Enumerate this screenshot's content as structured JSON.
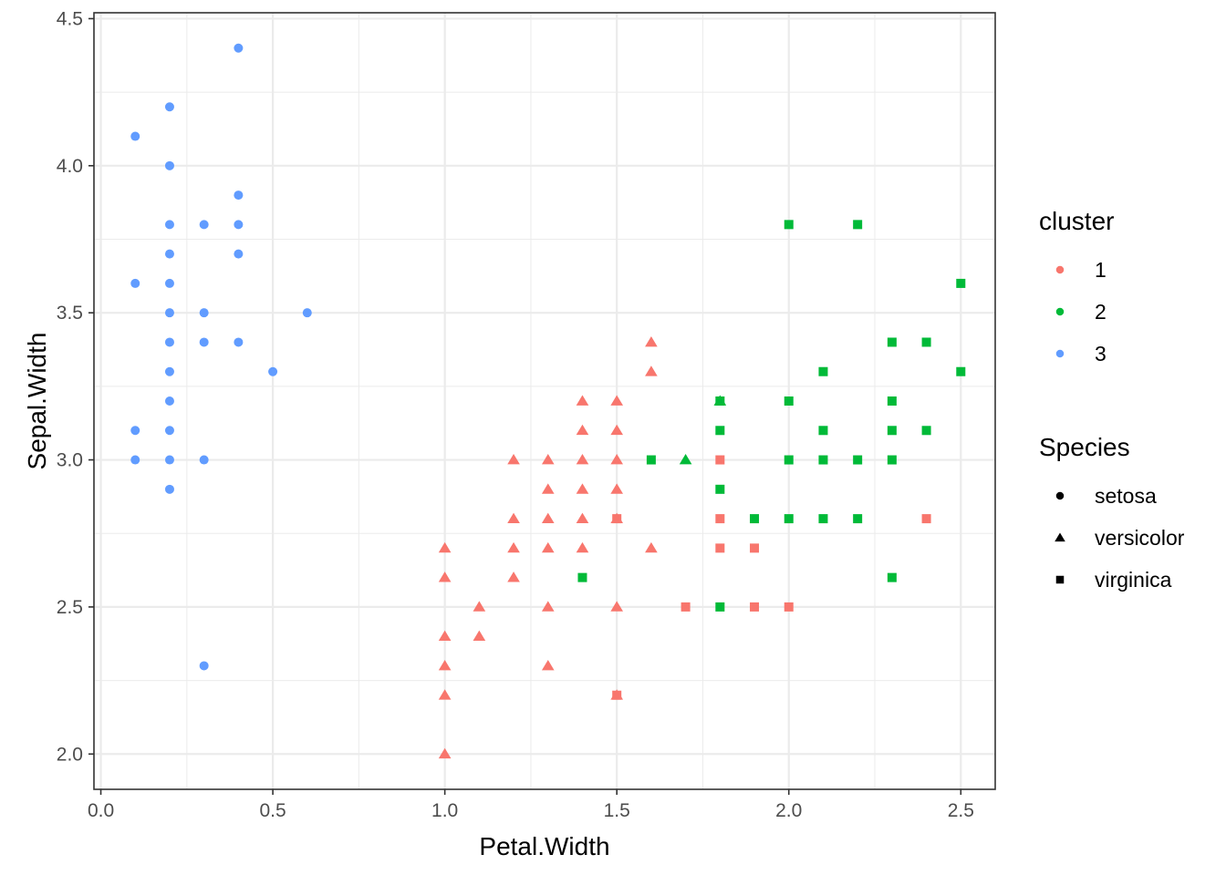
{
  "chart_data": {
    "type": "scatter",
    "xlabel": "Petal.Width",
    "ylabel": "Sepal.Width",
    "xlim": [
      -0.02,
      2.6
    ],
    "ylim": [
      1.88,
      4.52
    ],
    "x_ticks": [
      0.0,
      0.5,
      1.0,
      1.5,
      2.0,
      2.5
    ],
    "x_tick_labels": [
      "0.0",
      "0.5",
      "1.0",
      "1.5",
      "2.0",
      "2.5"
    ],
    "y_ticks": [
      2.0,
      2.5,
      3.0,
      3.5,
      4.0,
      4.5
    ],
    "y_tick_labels": [
      "2.0",
      "2.5",
      "3.0",
      "3.5",
      "4.0",
      "4.5"
    ],
    "grid": true,
    "legend_position": "right",
    "cluster_colors": {
      "1": "#F8766D",
      "2": "#00BA38",
      "3": "#619CFF"
    },
    "legends": {
      "cluster": {
        "title": "cluster",
        "entries": [
          "1",
          "2",
          "3"
        ]
      },
      "species": {
        "title": "Species",
        "entries": [
          "setosa",
          "versicolor",
          "virginica"
        ],
        "shapes": [
          "circle",
          "triangle",
          "square"
        ]
      }
    },
    "points": [
      {
        "x": 0.4,
        "y": 4.4,
        "cluster": "3",
        "species": "setosa"
      },
      {
        "x": 0.2,
        "y": 4.2,
        "cluster": "3",
        "species": "setosa"
      },
      {
        "x": 0.1,
        "y": 4.1,
        "cluster": "3",
        "species": "setosa"
      },
      {
        "x": 0.2,
        "y": 4.0,
        "cluster": "3",
        "species": "setosa"
      },
      {
        "x": 0.4,
        "y": 3.9,
        "cluster": "3",
        "species": "setosa"
      },
      {
        "x": 0.2,
        "y": 3.8,
        "cluster": "3",
        "species": "setosa"
      },
      {
        "x": 0.3,
        "y": 3.8,
        "cluster": "3",
        "species": "setosa"
      },
      {
        "x": 0.4,
        "y": 3.8,
        "cluster": "3",
        "species": "setosa"
      },
      {
        "x": 0.2,
        "y": 3.7,
        "cluster": "3",
        "species": "setosa"
      },
      {
        "x": 0.4,
        "y": 3.7,
        "cluster": "3",
        "species": "setosa"
      },
      {
        "x": 0.1,
        "y": 3.6,
        "cluster": "3",
        "species": "setosa"
      },
      {
        "x": 0.2,
        "y": 3.6,
        "cluster": "3",
        "species": "setosa"
      },
      {
        "x": 0.2,
        "y": 3.5,
        "cluster": "3",
        "species": "setosa"
      },
      {
        "x": 0.3,
        "y": 3.5,
        "cluster": "3",
        "species": "setosa"
      },
      {
        "x": 0.6,
        "y": 3.5,
        "cluster": "3",
        "species": "setosa"
      },
      {
        "x": 0.2,
        "y": 3.4,
        "cluster": "3",
        "species": "setosa"
      },
      {
        "x": 0.3,
        "y": 3.4,
        "cluster": "3",
        "species": "setosa"
      },
      {
        "x": 0.4,
        "y": 3.4,
        "cluster": "3",
        "species": "setosa"
      },
      {
        "x": 0.2,
        "y": 3.3,
        "cluster": "3",
        "species": "setosa"
      },
      {
        "x": 0.5,
        "y": 3.3,
        "cluster": "3",
        "species": "setosa"
      },
      {
        "x": 0.2,
        "y": 3.2,
        "cluster": "3",
        "species": "setosa"
      },
      {
        "x": 0.1,
        "y": 3.1,
        "cluster": "3",
        "species": "setosa"
      },
      {
        "x": 0.2,
        "y": 3.1,
        "cluster": "3",
        "species": "setosa"
      },
      {
        "x": 0.1,
        "y": 3.0,
        "cluster": "3",
        "species": "setosa"
      },
      {
        "x": 0.2,
        "y": 3.0,
        "cluster": "3",
        "species": "setosa"
      },
      {
        "x": 0.3,
        "y": 3.0,
        "cluster": "3",
        "species": "setosa"
      },
      {
        "x": 0.2,
        "y": 2.9,
        "cluster": "3",
        "species": "setosa"
      },
      {
        "x": 0.3,
        "y": 2.3,
        "cluster": "3",
        "species": "setosa"
      },
      {
        "x": 1.6,
        "y": 3.4,
        "cluster": "1",
        "species": "versicolor"
      },
      {
        "x": 1.6,
        "y": 3.3,
        "cluster": "1",
        "species": "versicolor"
      },
      {
        "x": 1.4,
        "y": 3.2,
        "cluster": "1",
        "species": "versicolor"
      },
      {
        "x": 1.5,
        "y": 3.2,
        "cluster": "1",
        "species": "versicolor"
      },
      {
        "x": 1.4,
        "y": 3.1,
        "cluster": "1",
        "species": "versicolor"
      },
      {
        "x": 1.5,
        "y": 3.1,
        "cluster": "1",
        "species": "versicolor"
      },
      {
        "x": 1.2,
        "y": 3.0,
        "cluster": "1",
        "species": "versicolor"
      },
      {
        "x": 1.3,
        "y": 3.0,
        "cluster": "1",
        "species": "versicolor"
      },
      {
        "x": 1.4,
        "y": 3.0,
        "cluster": "1",
        "species": "versicolor"
      },
      {
        "x": 1.5,
        "y": 3.0,
        "cluster": "1",
        "species": "versicolor"
      },
      {
        "x": 1.3,
        "y": 2.9,
        "cluster": "1",
        "species": "versicolor"
      },
      {
        "x": 1.4,
        "y": 2.9,
        "cluster": "1",
        "species": "versicolor"
      },
      {
        "x": 1.5,
        "y": 2.9,
        "cluster": "1",
        "species": "versicolor"
      },
      {
        "x": 1.2,
        "y": 2.8,
        "cluster": "1",
        "species": "versicolor"
      },
      {
        "x": 1.3,
        "y": 2.8,
        "cluster": "1",
        "species": "versicolor"
      },
      {
        "x": 1.4,
        "y": 2.8,
        "cluster": "1",
        "species": "versicolor"
      },
      {
        "x": 1.5,
        "y": 2.8,
        "cluster": "1",
        "species": "versicolor"
      },
      {
        "x": 1.0,
        "y": 2.7,
        "cluster": "1",
        "species": "versicolor"
      },
      {
        "x": 1.2,
        "y": 2.7,
        "cluster": "1",
        "species": "versicolor"
      },
      {
        "x": 1.3,
        "y": 2.7,
        "cluster": "1",
        "species": "versicolor"
      },
      {
        "x": 1.4,
        "y": 2.7,
        "cluster": "1",
        "species": "versicolor"
      },
      {
        "x": 1.6,
        "y": 2.7,
        "cluster": "1",
        "species": "versicolor"
      },
      {
        "x": 1.0,
        "y": 2.6,
        "cluster": "1",
        "species": "versicolor"
      },
      {
        "x": 1.2,
        "y": 2.6,
        "cluster": "1",
        "species": "versicolor"
      },
      {
        "x": 1.1,
        "y": 2.5,
        "cluster": "1",
        "species": "versicolor"
      },
      {
        "x": 1.3,
        "y": 2.5,
        "cluster": "1",
        "species": "versicolor"
      },
      {
        "x": 1.5,
        "y": 2.5,
        "cluster": "1",
        "species": "versicolor"
      },
      {
        "x": 1.0,
        "y": 2.4,
        "cluster": "1",
        "species": "versicolor"
      },
      {
        "x": 1.1,
        "y": 2.4,
        "cluster": "1",
        "species": "versicolor"
      },
      {
        "x": 1.0,
        "y": 2.3,
        "cluster": "1",
        "species": "versicolor"
      },
      {
        "x": 1.3,
        "y": 2.3,
        "cluster": "1",
        "species": "versicolor"
      },
      {
        "x": 1.0,
        "y": 2.2,
        "cluster": "1",
        "species": "versicolor"
      },
      {
        "x": 1.5,
        "y": 2.2,
        "cluster": "1",
        "species": "versicolor"
      },
      {
        "x": 1.0,
        "y": 2.0,
        "cluster": "1",
        "species": "versicolor"
      },
      {
        "x": 1.8,
        "y": 3.2,
        "cluster": "2",
        "species": "versicolor"
      },
      {
        "x": 1.7,
        "y": 3.0,
        "cluster": "2",
        "species": "versicolor"
      },
      {
        "x": 1.8,
        "y": 3.0,
        "cluster": "1",
        "species": "virginica"
      },
      {
        "x": 1.5,
        "y": 2.8,
        "cluster": "1",
        "species": "virginica"
      },
      {
        "x": 1.8,
        "y": 2.8,
        "cluster": "1",
        "species": "virginica"
      },
      {
        "x": 2.4,
        "y": 2.8,
        "cluster": "1",
        "species": "virginica"
      },
      {
        "x": 1.8,
        "y": 2.7,
        "cluster": "1",
        "species": "virginica"
      },
      {
        "x": 1.9,
        "y": 2.7,
        "cluster": "1",
        "species": "virginica"
      },
      {
        "x": 1.7,
        "y": 2.5,
        "cluster": "1",
        "species": "virginica"
      },
      {
        "x": 1.9,
        "y": 2.5,
        "cluster": "1",
        "species": "virginica"
      },
      {
        "x": 2.0,
        "y": 2.5,
        "cluster": "1",
        "species": "virginica"
      },
      {
        "x": 1.5,
        "y": 2.2,
        "cluster": "1",
        "species": "virginica"
      },
      {
        "x": 2.0,
        "y": 3.8,
        "cluster": "2",
        "species": "virginica"
      },
      {
        "x": 2.2,
        "y": 3.8,
        "cluster": "2",
        "species": "virginica"
      },
      {
        "x": 2.5,
        "y": 3.6,
        "cluster": "2",
        "species": "virginica"
      },
      {
        "x": 2.3,
        "y": 3.4,
        "cluster": "2",
        "species": "virginica"
      },
      {
        "x": 2.4,
        "y": 3.4,
        "cluster": "2",
        "species": "virginica"
      },
      {
        "x": 2.1,
        "y": 3.3,
        "cluster": "2",
        "species": "virginica"
      },
      {
        "x": 2.5,
        "y": 3.3,
        "cluster": "2",
        "species": "virginica"
      },
      {
        "x": 1.8,
        "y": 3.2,
        "cluster": "2",
        "species": "virginica"
      },
      {
        "x": 2.0,
        "y": 3.2,
        "cluster": "2",
        "species": "virginica"
      },
      {
        "x": 2.3,
        "y": 3.2,
        "cluster": "2",
        "species": "virginica"
      },
      {
        "x": 1.8,
        "y": 3.1,
        "cluster": "2",
        "species": "virginica"
      },
      {
        "x": 2.1,
        "y": 3.1,
        "cluster": "2",
        "species": "virginica"
      },
      {
        "x": 2.3,
        "y": 3.1,
        "cluster": "2",
        "species": "virginica"
      },
      {
        "x": 2.4,
        "y": 3.1,
        "cluster": "2",
        "species": "virginica"
      },
      {
        "x": 1.6,
        "y": 3.0,
        "cluster": "2",
        "species": "virginica"
      },
      {
        "x": 2.0,
        "y": 3.0,
        "cluster": "2",
        "species": "virginica"
      },
      {
        "x": 2.1,
        "y": 3.0,
        "cluster": "2",
        "species": "virginica"
      },
      {
        "x": 2.2,
        "y": 3.0,
        "cluster": "2",
        "species": "virginica"
      },
      {
        "x": 2.3,
        "y": 3.0,
        "cluster": "2",
        "species": "virginica"
      },
      {
        "x": 1.8,
        "y": 2.9,
        "cluster": "2",
        "species": "virginica"
      },
      {
        "x": 1.9,
        "y": 2.8,
        "cluster": "2",
        "species": "virginica"
      },
      {
        "x": 2.0,
        "y": 2.8,
        "cluster": "2",
        "species": "virginica"
      },
      {
        "x": 2.1,
        "y": 2.8,
        "cluster": "2",
        "species": "virginica"
      },
      {
        "x": 2.2,
        "y": 2.8,
        "cluster": "2",
        "species": "virginica"
      },
      {
        "x": 1.4,
        "y": 2.6,
        "cluster": "2",
        "species": "virginica"
      },
      {
        "x": 2.3,
        "y": 2.6,
        "cluster": "2",
        "species": "virginica"
      },
      {
        "x": 1.8,
        "y": 2.5,
        "cluster": "2",
        "species": "virginica"
      }
    ]
  }
}
